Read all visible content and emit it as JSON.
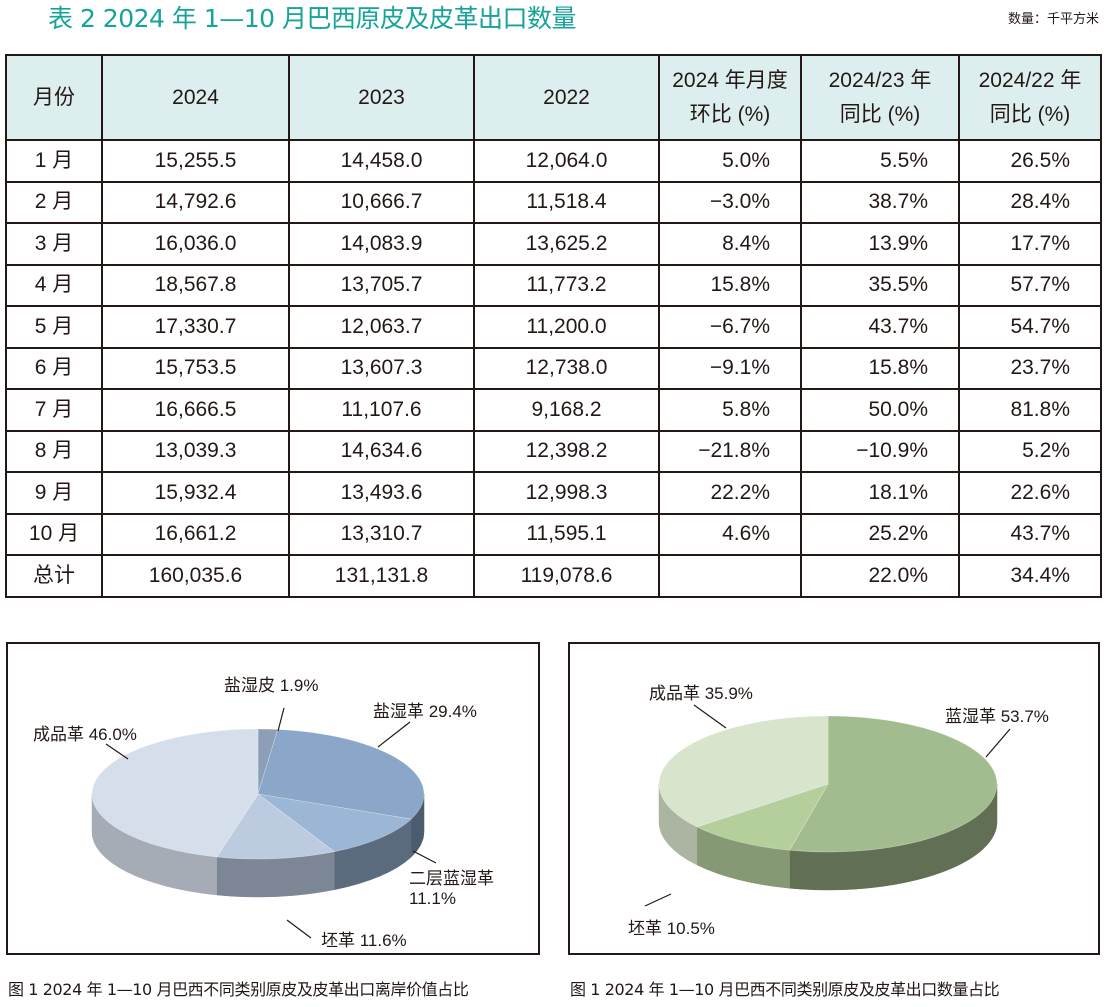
{
  "title": "表 2  2024 年 1—10 月巴西原皮及皮革出口数量",
  "unit": "数量：千平方米",
  "table": {
    "headers": [
      {
        "line1": "月份",
        "line2": ""
      },
      {
        "line1": "2024",
        "line2": ""
      },
      {
        "line1": "2023",
        "line2": ""
      },
      {
        "line1": "2022",
        "line2": ""
      },
      {
        "line1": "2024 年月度",
        "line2": "环比 (%)"
      },
      {
        "line1": "2024/23 年",
        "line2": "同比 (%)"
      },
      {
        "line1": "2024/22 年",
        "line2": "同比 (%)"
      }
    ],
    "rows": [
      [
        "1 月",
        "15,255.5",
        "14,458.0",
        "12,064.0",
        "5.0%",
        "5.5%",
        "26.5%"
      ],
      [
        "2 月",
        "14,792.6",
        "10,666.7",
        "11,518.4",
        "−3.0%",
        "38.7%",
        "28.4%"
      ],
      [
        "3 月",
        "16,036.0",
        "14,083.9",
        "13,625.2",
        "8.4%",
        "13.9%",
        "17.7%"
      ],
      [
        "4 月",
        "18,567.8",
        "13,705.7",
        "11,773.2",
        "15.8%",
        "35.5%",
        "57.7%"
      ],
      [
        "5 月",
        "17,330.7",
        "12,063.7",
        "11,200.0",
        "−6.7%",
        "43.7%",
        "54.7%"
      ],
      [
        "6 月",
        "15,753.5",
        "13,607.3",
        "12,738.0",
        "−9.1%",
        "15.8%",
        "23.7%"
      ],
      [
        "7 月",
        "16,666.5",
        "11,107.6",
        "9,168.2",
        "5.8%",
        "50.0%",
        "81.8%"
      ],
      [
        "8 月",
        "13,039.3",
        "14,634.6",
        "12,398.2",
        "−21.8%",
        "−10.9%",
        "5.2%"
      ],
      [
        "9 月",
        "15,932.4",
        "13,493.6",
        "12,998.3",
        "22.2%",
        "18.1%",
        "22.6%"
      ],
      [
        "10 月",
        "16,661.2",
        "13,310.7",
        "11,595.1",
        "4.6%",
        "25.2%",
        "43.7%"
      ],
      [
        "总计",
        "160,035.6",
        "131,131.8",
        "119,078.6",
        "",
        "22.0%",
        "34.4%"
      ]
    ]
  },
  "chart_data": [
    {
      "type": "pie",
      "title": "图 1  2024 年 1—10 月巴西不同类别原皮及皮革出口离岸价值占比",
      "slices": [
        {
          "label": "盐湿皮",
          "value": 1.9,
          "text": "盐湿皮 1.9%",
          "color": "#8c9fb6"
        },
        {
          "label": "盐湿革",
          "value": 29.4,
          "text": "盐湿革 29.4%",
          "color": "#8aa6c9"
        },
        {
          "label": "二层蓝湿革",
          "value": 11.1,
          "text": "二层蓝湿革",
          "text2": "11.1%",
          "color": "#9cb6d6"
        },
        {
          "label": "坯革",
          "value": 11.6,
          "text": "坯革 11.6%",
          "color": "#bccbe0"
        },
        {
          "label": "成品革",
          "value": 46.0,
          "text": "成品革 46.0%",
          "color": "#d5deeb"
        }
      ]
    },
    {
      "type": "pie",
      "title": "图 1  2024 年 1—10 月巴西不同类别原皮及皮革出口数量占比",
      "slices": [
        {
          "label": "蓝湿革",
          "value": 53.7,
          "text": "蓝湿革 53.7%",
          "color": "#a3bc8f"
        },
        {
          "label": "坯革",
          "value": 10.5,
          "text": "坯革 10.5%",
          "color": "#b4cf9c"
        },
        {
          "label": "成品革",
          "value": 35.9,
          "text": "成品革 35.9%",
          "color": "#d8e4cc"
        }
      ]
    }
  ]
}
